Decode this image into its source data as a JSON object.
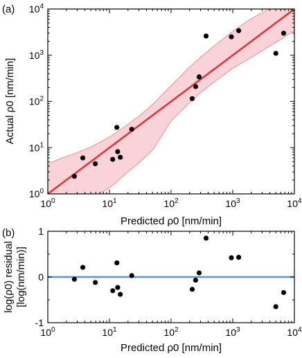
{
  "colors": {
    "fit_line": "#e8323c",
    "band_fill": "#f9d3d7",
    "band_edge": "#ef8d96",
    "residual_zero": "#5b8fe8",
    "points": "#000000"
  },
  "chart_data": [
    {
      "type": "scatter",
      "panel_label": "(a)",
      "xlabel": "Predicted ρ0 [nm/min]",
      "ylabel": "Actual ρ0 [nm/min]",
      "xscale": "log",
      "yscale": "log",
      "xlim": [
        1,
        10000
      ],
      "ylim": [
        1,
        10000
      ],
      "xticks": [
        {
          "value": 1,
          "label": "10",
          "exp": "0"
        },
        {
          "value": 10,
          "label": "10",
          "exp": "1"
        },
        {
          "value": 100,
          "label": "10",
          "exp": "2"
        },
        {
          "value": 1000,
          "label": "10",
          "exp": "3"
        },
        {
          "value": 10000,
          "label": "10",
          "exp": "4"
        }
      ],
      "yticks": [
        {
          "value": 1,
          "label": "10",
          "exp": "0"
        },
        {
          "value": 10,
          "label": "10",
          "exp": "1"
        },
        {
          "value": 100,
          "label": "10",
          "exp": "2"
        },
        {
          "value": 1000,
          "label": "10",
          "exp": "3"
        },
        {
          "value": 10000,
          "label": "10",
          "exp": "4"
        }
      ],
      "grid": false,
      "fit_line": {
        "x": [
          1,
          10000
        ],
        "y": [
          1,
          10000
        ]
      },
      "confidence_band": {
        "x": [
          1,
          2,
          3,
          5,
          10,
          20,
          30,
          50,
          100,
          200,
          300,
          500,
          1000,
          2000,
          5000,
          10000
        ],
        "upper": [
          4.5,
          6.5,
          7.8,
          10.3,
          17,
          32,
          48,
          85,
          220,
          560,
          900,
          1600,
          3300,
          6200,
          12000,
          20000
        ],
        "lower": [
          0.22,
          0.38,
          0.52,
          0.78,
          1.35,
          3.0,
          4.7,
          8.8,
          38,
          95,
          155,
          265,
          520,
          900,
          1900,
          3400
        ]
      },
      "points": [
        {
          "x": 2.7,
          "y": 2.4
        },
        {
          "x": 3.7,
          "y": 6.0
        },
        {
          "x": 5.9,
          "y": 4.5
        },
        {
          "x": 11.3,
          "y": 5.6
        },
        {
          "x": 13.2,
          "y": 27.5
        },
        {
          "x": 13.6,
          "y": 8.2
        },
        {
          "x": 15.0,
          "y": 6.2
        },
        {
          "x": 23.0,
          "y": 25.0
        },
        {
          "x": 220,
          "y": 115
        },
        {
          "x": 250,
          "y": 210
        },
        {
          "x": 285,
          "y": 340
        },
        {
          "x": 370,
          "y": 2600
        },
        {
          "x": 950,
          "y": 2500
        },
        {
          "x": 1250,
          "y": 3400
        },
        {
          "x": 5000,
          "y": 1100
        },
        {
          "x": 6700,
          "y": 3000
        }
      ]
    },
    {
      "type": "scatter",
      "panel_label": "(b)",
      "xlabel": "Predicted ρ0 [nm/min]",
      "ylabel_line1": "log(ρ0) residual",
      "ylabel_line2": "[log(nm/min)]",
      "xscale": "log",
      "xlim": [
        1,
        10000
      ],
      "ylim": [
        -1,
        1
      ],
      "xticks": [
        {
          "value": 1,
          "label": "10",
          "exp": "0"
        },
        {
          "value": 10,
          "label": "10",
          "exp": "1"
        },
        {
          "value": 100,
          "label": "10",
          "exp": "2"
        },
        {
          "value": 1000,
          "label": "10",
          "exp": "3"
        },
        {
          "value": 10000,
          "label": "10",
          "exp": "4"
        }
      ],
      "yticks": [
        {
          "value": -1,
          "label": "-1"
        },
        {
          "value": 0,
          "label": "0"
        },
        {
          "value": 1,
          "label": "1"
        }
      ],
      "grid": false,
      "zero_line": 0,
      "points": [
        {
          "x": 2.7,
          "y": -0.05
        },
        {
          "x": 3.7,
          "y": 0.21
        },
        {
          "x": 5.9,
          "y": -0.12
        },
        {
          "x": 11.3,
          "y": -0.3
        },
        {
          "x": 13.2,
          "y": 0.31
        },
        {
          "x": 13.6,
          "y": -0.23
        },
        {
          "x": 15.0,
          "y": -0.38
        },
        {
          "x": 23.0,
          "y": 0.03
        },
        {
          "x": 220,
          "y": -0.27
        },
        {
          "x": 250,
          "y": -0.07
        },
        {
          "x": 285,
          "y": 0.09
        },
        {
          "x": 370,
          "y": 0.85
        },
        {
          "x": 950,
          "y": 0.42
        },
        {
          "x": 1250,
          "y": 0.43
        },
        {
          "x": 5000,
          "y": -0.65
        },
        {
          "x": 6700,
          "y": -0.34
        }
      ]
    }
  ]
}
